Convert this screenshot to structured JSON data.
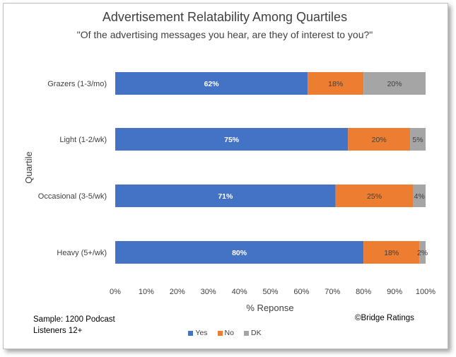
{
  "chart_data": {
    "type": "bar",
    "orientation": "horizontal",
    "stacked": true,
    "title": "Advertisement Relatability Among Quartiles",
    "subtitle": "\"Of the advertising messages you hear, are they of interest to you?\"",
    "xlabel": "% Reponse",
    "ylabel": "Quartile",
    "xlim": [
      0,
      100
    ],
    "xticks": [
      "0%",
      "10%",
      "20%",
      "30%",
      "40%",
      "50%",
      "60%",
      "70%",
      "80%",
      "90%",
      "100%"
    ],
    "categories": [
      "Grazers (1-3/mo)",
      "Light (1-2/wk)",
      "Occasional (3-5/wk)",
      "Heavy (5+/wk)"
    ],
    "series": [
      {
        "name": "Yes",
        "color": "#4472c4",
        "label_color": "#ffffff",
        "values": [
          62,
          75,
          71,
          80
        ],
        "labels": [
          "62%",
          "75%",
          "71%",
          "80%"
        ]
      },
      {
        "name": "No",
        "color": "#ed7d31",
        "label_color": "#404040",
        "values": [
          18,
          20,
          25,
          18
        ],
        "labels": [
          "18%",
          "20%",
          "25%",
          "18%"
        ]
      },
      {
        "name": "DK",
        "color": "#a5a5a5",
        "label_color": "#404040",
        "values": [
          20,
          5,
          4,
          2
        ],
        "labels": [
          "20%",
          "5%",
          "4%",
          "2%"
        ]
      }
    ],
    "legend_position": "bottom",
    "grid": false
  },
  "notes": {
    "sample_line1": "Sample: 1200 Podcast",
    "sample_line2": "Listeners 12+",
    "credit": "©Bridge Ratings"
  }
}
